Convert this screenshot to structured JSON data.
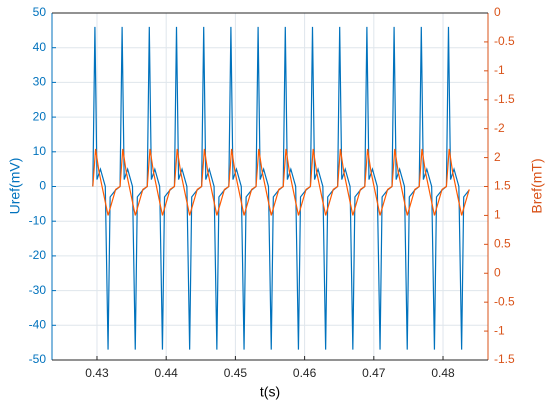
{
  "chart_data": {
    "type": "line",
    "ylabel": "Uref(mV)",
    "y2label": "Bref(mT)",
    "xlabel": "t(s)",
    "xlim": [
      0.4235,
      0.4865
    ],
    "xticks": [
      0.43,
      0.44,
      0.45,
      0.46,
      0.47,
      0.48
    ],
    "ylim": [
      -50,
      50
    ],
    "yticks": [
      -50,
      -40,
      -30,
      -20,
      -10,
      0,
      10,
      20,
      30,
      40,
      50
    ],
    "y2lim": [
      -6,
      0
    ],
    "y2ticks": [
      0,
      -0.5,
      -1,
      -1.5,
      -2,
      {
        "value": -2.5,
        "label": "2"
      },
      {
        "value": -3,
        "label": "1.5"
      },
      {
        "value": -3.5,
        "label": "1"
      },
      {
        "value": -4,
        "label": "0.5"
      },
      {
        "value": -4.5,
        "label": "0"
      },
      {
        "value": -5,
        "label": "-0.5"
      },
      {
        "value": -5.5,
        "label": "-1"
      },
      {
        "value": -6,
        "label": "-1.5"
      }
    ],
    "grid": true,
    "series": [
      {
        "color": "#0072bd",
        "x": [
          0.4294,
          0.4297,
          0.43,
          0.4305,
          0.4312,
          0.4316,
          0.4319,
          0.4327,
          0.43333,
          0.43363,
          0.43393,
          0.43443,
          0.43513,
          0.43553,
          0.43583,
          0.43663,
          0.43726,
          0.43756,
          0.43786,
          0.43836,
          0.43906,
          0.43946,
          0.43976,
          0.44056,
          0.44119,
          0.44149,
          0.44179,
          0.44229,
          0.44299,
          0.44339,
          0.44369,
          0.44449,
          0.44512,
          0.44542,
          0.44572,
          0.44622,
          0.44692,
          0.44732,
          0.44762,
          0.44842,
          0.44905,
          0.44935,
          0.44965,
          0.45015,
          0.45085,
          0.45125,
          0.45155,
          0.45235,
          0.45298,
          0.45328,
          0.45358,
          0.45408,
          0.45478,
          0.45518,
          0.45548,
          0.45628,
          0.45691,
          0.45721,
          0.45751,
          0.45801,
          0.45871,
          0.45911,
          0.45941,
          0.46021,
          0.46084,
          0.46114,
          0.46144,
          0.46194,
          0.46264,
          0.46304,
          0.46334,
          0.46414,
          0.46477,
          0.46507,
          0.46537,
          0.46587,
          0.46657,
          0.46697,
          0.46727,
          0.46807,
          0.4687,
          0.469,
          0.4693,
          0.4698,
          0.4705,
          0.4709,
          0.4712,
          0.472,
          0.47263,
          0.47293,
          0.47323,
          0.47373,
          0.47443,
          0.47483,
          0.47513,
          0.47593,
          0.47656,
          0.47686,
          0.47716,
          0.47766,
          0.47836,
          0.47876,
          0.47906,
          0.47986,
          0.48049,
          0.48079,
          0.48109,
          0.48159,
          0.48229,
          0.48269,
          0.48299,
          0.48379
        ],
        "values": [
          0,
          46,
          2,
          5,
          0,
          -47,
          -3,
          -1,
          0,
          46,
          2,
          5,
          0,
          -47,
          -3,
          -1,
          0,
          46,
          2,
          5,
          0,
          -47,
          -3,
          -1,
          0,
          46,
          2,
          5,
          0,
          -47,
          -3,
          -1,
          0,
          46,
          2,
          5,
          0,
          -47,
          -3,
          -1,
          0,
          46,
          2,
          5,
          0,
          -47,
          -3,
          -1,
          0,
          46,
          2,
          5,
          0,
          -47,
          -3,
          -1,
          0,
          46,
          2,
          5,
          0,
          -47,
          -3,
          -1,
          0,
          46,
          2,
          5,
          0,
          -47,
          -3,
          -1,
          0,
          46,
          2,
          5,
          0,
          -47,
          -3,
          -1,
          0,
          46,
          2,
          5,
          0,
          -47,
          -3,
          -1,
          0,
          46,
          2,
          5,
          0,
          -47,
          -3,
          -1,
          0,
          46,
          2,
          5,
          0,
          -47,
          -3,
          -1,
          0,
          46,
          2,
          5,
          0,
          -47,
          -3,
          -1
        ]
      },
      {
        "color": "#ff5a00",
        "axis": "y2",
        "x": [
          0.4294,
          0.4298,
          0.4303,
          0.4316,
          0.4327,
          0.43333,
          0.43373,
          0.43423,
          0.43553,
          0.43663,
          0.43726,
          0.43766,
          0.43816,
          0.43946,
          0.44056,
          0.44119,
          0.44159,
          0.44209,
          0.44339,
          0.44449,
          0.44512,
          0.44552,
          0.44602,
          0.44732,
          0.44842,
          0.44905,
          0.44945,
          0.44995,
          0.45125,
          0.45235,
          0.45298,
          0.45338,
          0.45388,
          0.45518,
          0.45628,
          0.45691,
          0.45731,
          0.45781,
          0.45911,
          0.46021,
          0.46084,
          0.46124,
          0.46174,
          0.46304,
          0.46414,
          0.46477,
          0.46517,
          0.46567,
          0.46697,
          0.46807,
          0.4687,
          0.4691,
          0.4696,
          0.4709,
          0.472,
          0.47263,
          0.47303,
          0.47353,
          0.47483,
          0.47593,
          0.47656,
          0.47696,
          0.47746,
          0.47876,
          0.47986,
          0.48049,
          0.48089,
          0.48139,
          0.48269,
          0.48379
        ],
        "values": [
          -3,
          -2.35,
          -2.75,
          -3.5,
          -3.05,
          -3,
          -2.35,
          -2.75,
          -3.5,
          -3.05,
          -3,
          -2.35,
          -2.75,
          -3.5,
          -3.05,
          -3,
          -2.35,
          -2.75,
          -3.5,
          -3.05,
          -3,
          -2.35,
          -2.75,
          -3.5,
          -3.05,
          -3,
          -2.35,
          -2.75,
          -3.5,
          -3.05,
          -3,
          -2.35,
          -2.75,
          -3.5,
          -3.05,
          -3,
          -2.35,
          -2.75,
          -3.5,
          -3.05,
          -3,
          -2.35,
          -2.75,
          -3.5,
          -3.05,
          -3,
          -2.35,
          -2.75,
          -3.5,
          -3.05,
          -3,
          -2.35,
          -2.75,
          -3.5,
          -3.05,
          -3,
          -2.35,
          -2.75,
          -3.5,
          -3.05,
          -3,
          -2.35,
          -2.75,
          -3.5,
          -3.05,
          -3,
          -2.35,
          -2.75,
          -3.5,
          -3.05
        ]
      }
    ]
  }
}
